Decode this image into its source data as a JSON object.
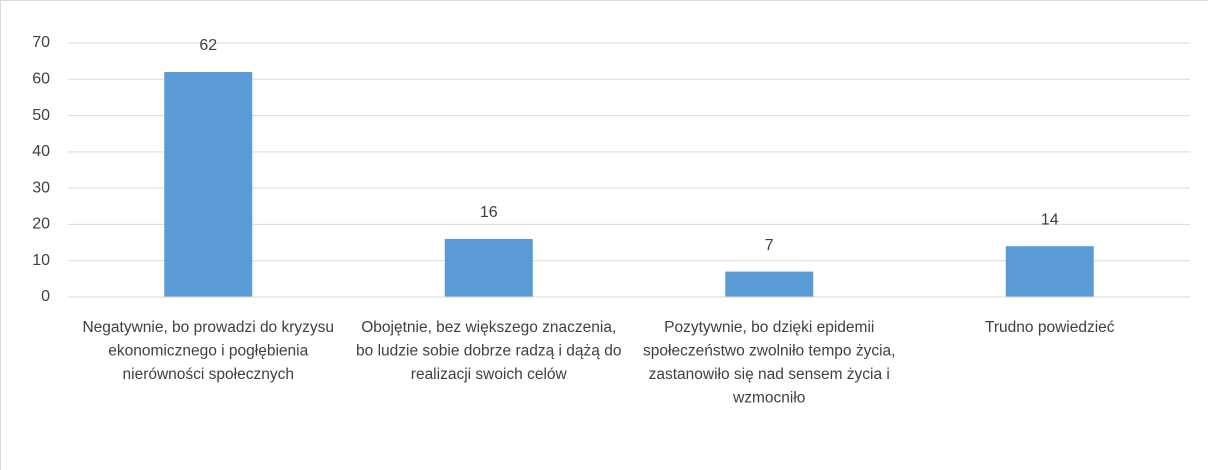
{
  "chart_data": {
    "type": "bar",
    "categories": [
      "Negatywnie, bo prowadzi do kryzysu ekonomicznego i pogłębienia nierówności społecznych",
      "Obojętnie, bez większego znaczenia, bo ludzie sobie dobrze radzą i dążą do realizacji swoich celów",
      "Pozytywnie,  bo dzięki epidemii społeczeństwo zwolniło tempo życia, zastanowiło się nad sensem życia i wzmocniło",
      "Trudno powiedzieć"
    ],
    "values": [
      62,
      16,
      7,
      14
    ],
    "color": "#5b9bd5",
    "ylim": [
      0,
      70
    ],
    "yticks": [
      0,
      10,
      20,
      30,
      40,
      50,
      60,
      70
    ],
    "grid": true
  }
}
